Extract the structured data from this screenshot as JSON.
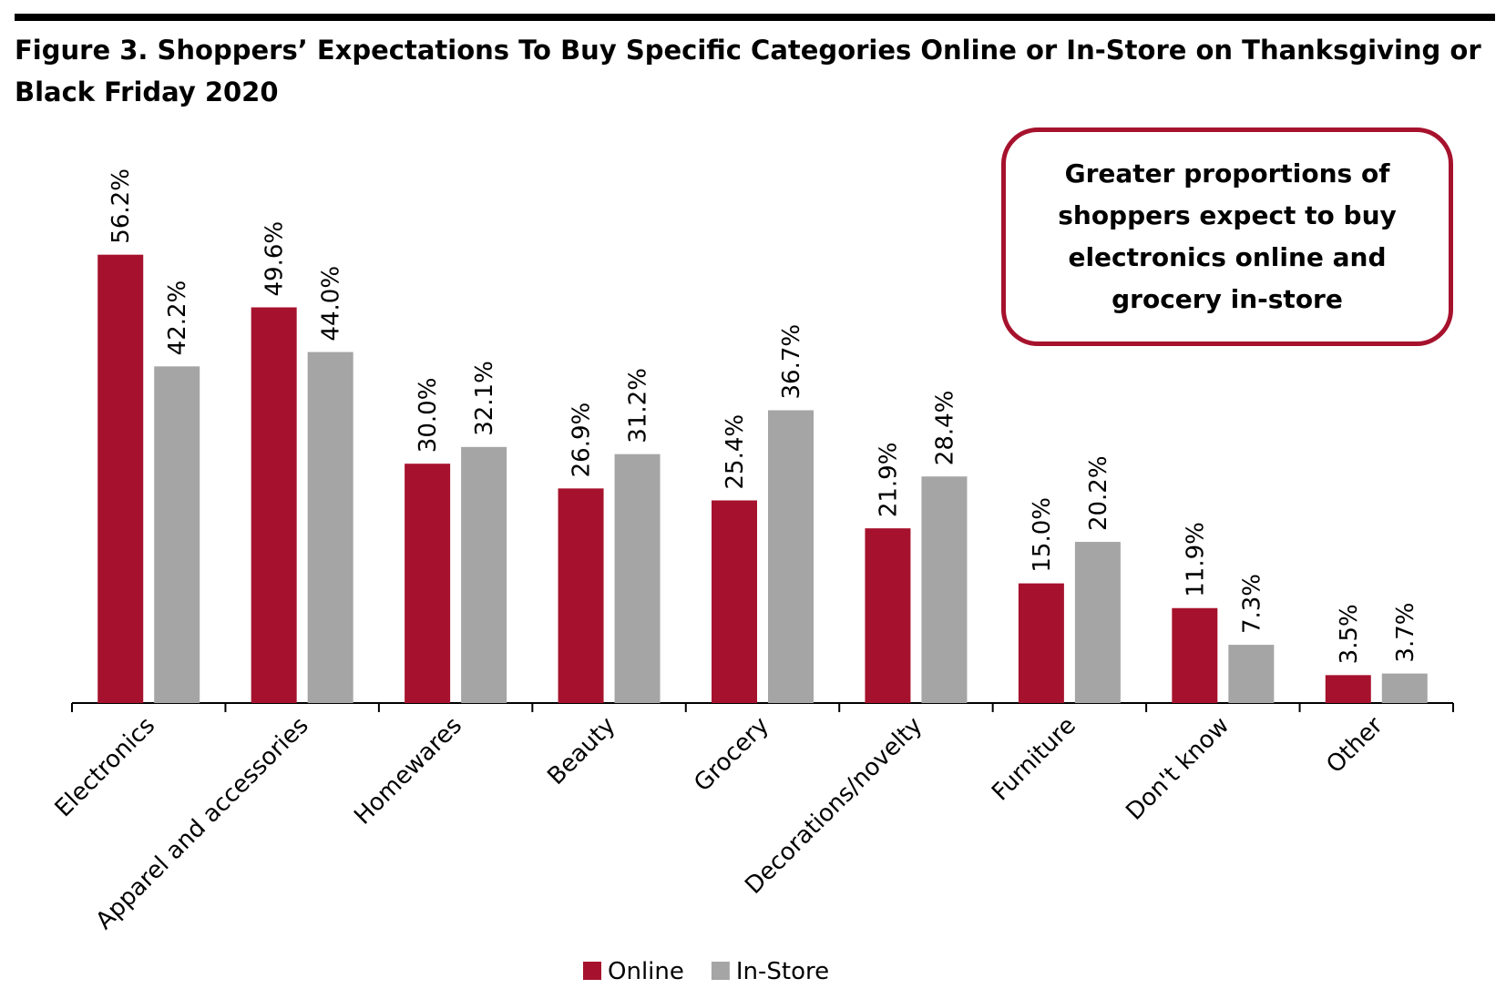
{
  "chart_data": {
    "type": "bar",
    "title": "Figure 3. Shoppers’ Expectations To Buy Specific Categories Online or In-Store on Thanksgiving or Black Friday 2020",
    "annotation": "Greater proportions of shoppers expect to buy electronics online and grocery in-store",
    "categories": [
      "Electronics",
      "Apparel and accessories",
      "Homewares",
      "Beauty",
      "Grocery",
      "Decorations/novelty",
      "Furniture",
      "Don't know",
      "Other"
    ],
    "series": [
      {
        "name": "Online",
        "color": "#a6122d",
        "values": [
          56.2,
          49.6,
          30.0,
          26.9,
          25.4,
          21.9,
          15.0,
          11.9,
          3.5
        ],
        "value_labels": [
          "56.2%",
          "49.6%",
          "30.0%",
          "26.9%",
          "25.4%",
          "21.9%",
          "15.0%",
          "11.9%",
          "3.5%"
        ]
      },
      {
        "name": "In-Store",
        "color": "#a5a5a5",
        "values": [
          42.2,
          44.0,
          32.1,
          31.2,
          36.7,
          28.4,
          20.2,
          7.3,
          3.7
        ],
        "value_labels": [
          "42.2%",
          "44.0%",
          "32.1%",
          "31.2%",
          "36.7%",
          "28.4%",
          "20.2%",
          "7.3%",
          "3.7%"
        ]
      }
    ],
    "legend": "bottom"
  }
}
